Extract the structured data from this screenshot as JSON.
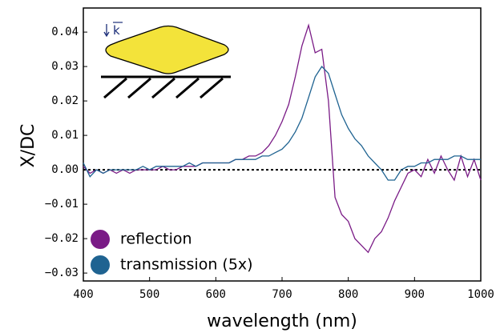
{
  "chart_data": {
    "type": "line",
    "xlabel": "wavelength (nm)",
    "ylabel": "X/DC",
    "inset_label": "k",
    "x": [
      400,
      410,
      420,
      430,
      440,
      450,
      460,
      470,
      480,
      490,
      500,
      510,
      520,
      530,
      540,
      550,
      560,
      570,
      580,
      590,
      600,
      610,
      620,
      630,
      640,
      650,
      660,
      670,
      680,
      690,
      700,
      710,
      720,
      730,
      740,
      750,
      760,
      770,
      780,
      790,
      800,
      810,
      820,
      830,
      840,
      850,
      860,
      870,
      880,
      890,
      900,
      910,
      920,
      930,
      940,
      950,
      960,
      970,
      980,
      990,
      1000
    ],
    "series": [
      {
        "name": "reflection",
        "color": "#7a1b86",
        "values": [
          0.001,
          -0.001,
          0.0,
          -0.001,
          0.0,
          -0.001,
          0.0,
          -0.001,
          0.0,
          0.0,
          0.0,
          0.0,
          0.001,
          0.0,
          0.0,
          0.001,
          0.001,
          0.001,
          0.002,
          0.002,
          0.002,
          0.002,
          0.002,
          0.003,
          0.003,
          0.004,
          0.004,
          0.005,
          0.007,
          0.01,
          0.014,
          0.019,
          0.027,
          0.036,
          0.042,
          0.034,
          0.035,
          0.02,
          -0.008,
          -0.013,
          -0.015,
          -0.02,
          -0.022,
          -0.024,
          -0.02,
          -0.018,
          -0.014,
          -0.009,
          -0.005,
          -0.001,
          0.0,
          -0.002,
          0.003,
          -0.001,
          0.004,
          0.0,
          -0.003,
          0.004,
          -0.002,
          0.003,
          -0.003
        ]
      },
      {
        "name": "transmission (5x)",
        "color": "#1f6391",
        "values": [
          0.002,
          -0.002,
          0.0,
          -0.001,
          0.0,
          0.0,
          0.0,
          0.0,
          0.0,
          0.001,
          0.0,
          0.001,
          0.001,
          0.001,
          0.001,
          0.001,
          0.002,
          0.001,
          0.002,
          0.002,
          0.002,
          0.002,
          0.002,
          0.003,
          0.003,
          0.003,
          0.003,
          0.004,
          0.004,
          0.005,
          0.006,
          0.008,
          0.011,
          0.015,
          0.021,
          0.027,
          0.03,
          0.028,
          0.022,
          0.016,
          0.012,
          0.009,
          0.007,
          0.004,
          0.002,
          0.0,
          -0.003,
          -0.003,
          0.0,
          0.001,
          0.001,
          0.002,
          0.002,
          0.003,
          0.003,
          0.003,
          0.004,
          0.004,
          0.003,
          0.003,
          0.003
        ]
      }
    ],
    "xlim": [
      400,
      1000
    ],
    "xticks": [
      400,
      500,
      600,
      700,
      800,
      900,
      1000
    ],
    "ylim": [
      -0.0323,
      0.047
    ],
    "yticks": [
      {
        "value": -0.03,
        "label": "−0.03"
      },
      {
        "value": -0.02,
        "label": "−0.02"
      },
      {
        "value": -0.01,
        "label": "−0.01"
      },
      {
        "value": 0,
        "label": "0.00"
      },
      0.01,
      0.02,
      0.03,
      0.04
    ],
    "zero_line": true,
    "legend": "lower left"
  }
}
